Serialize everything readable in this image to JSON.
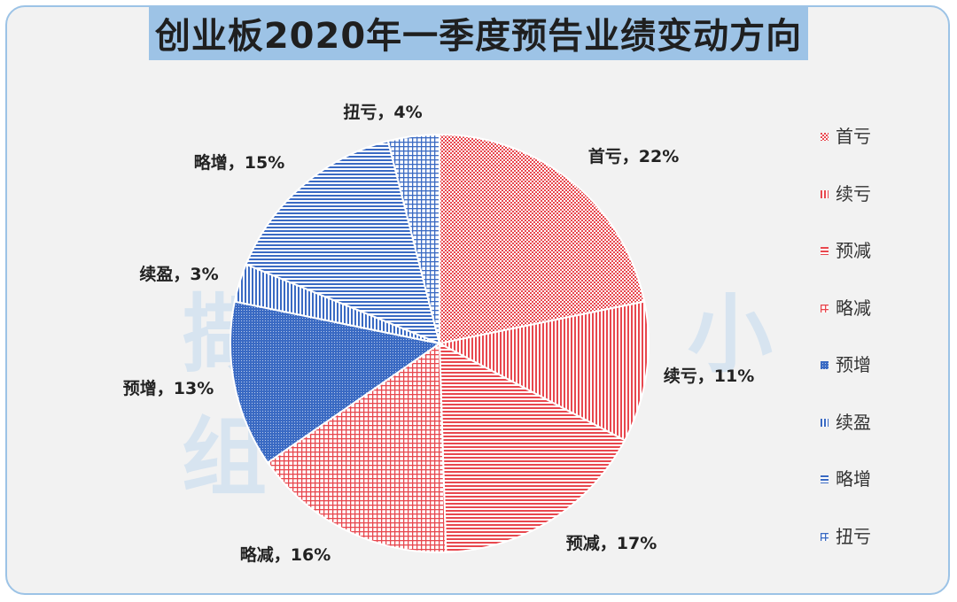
{
  "chart_data": {
    "type": "pie",
    "title": "创业板2020年一季度预告业绩变动方向",
    "watermark": "撷 英 小 组",
    "slices": [
      {
        "name": "首亏",
        "value": 22,
        "label": "首亏，22%",
        "color": "#e8474e",
        "pattern": "dots"
      },
      {
        "name": "续亏",
        "value": 11,
        "label": "续亏，11%",
        "color": "#e8474e",
        "pattern": "vertical"
      },
      {
        "name": "预减",
        "value": 17,
        "label": "预减，17%",
        "color": "#e8474e",
        "pattern": "horizontal"
      },
      {
        "name": "略减",
        "value": 16,
        "label": "略减，16%",
        "color": "#e8474e",
        "pattern": "grid"
      },
      {
        "name": "预增",
        "value": 13,
        "label": "预增，13%",
        "color": "#3a6ac3",
        "pattern": "dense"
      },
      {
        "name": "续盈",
        "value": 3,
        "label": "续盈，3%",
        "color": "#3a6ac3",
        "pattern": "vertical"
      },
      {
        "name": "略增",
        "value": 15,
        "label": "略增，15%",
        "color": "#3a6ac3",
        "pattern": "horizontal"
      },
      {
        "name": "扭亏",
        "value": 4,
        "label": "扭亏，4%",
        "color": "#3a6ac3",
        "pattern": "grid"
      }
    ],
    "legend": {
      "position": "right"
    }
  }
}
